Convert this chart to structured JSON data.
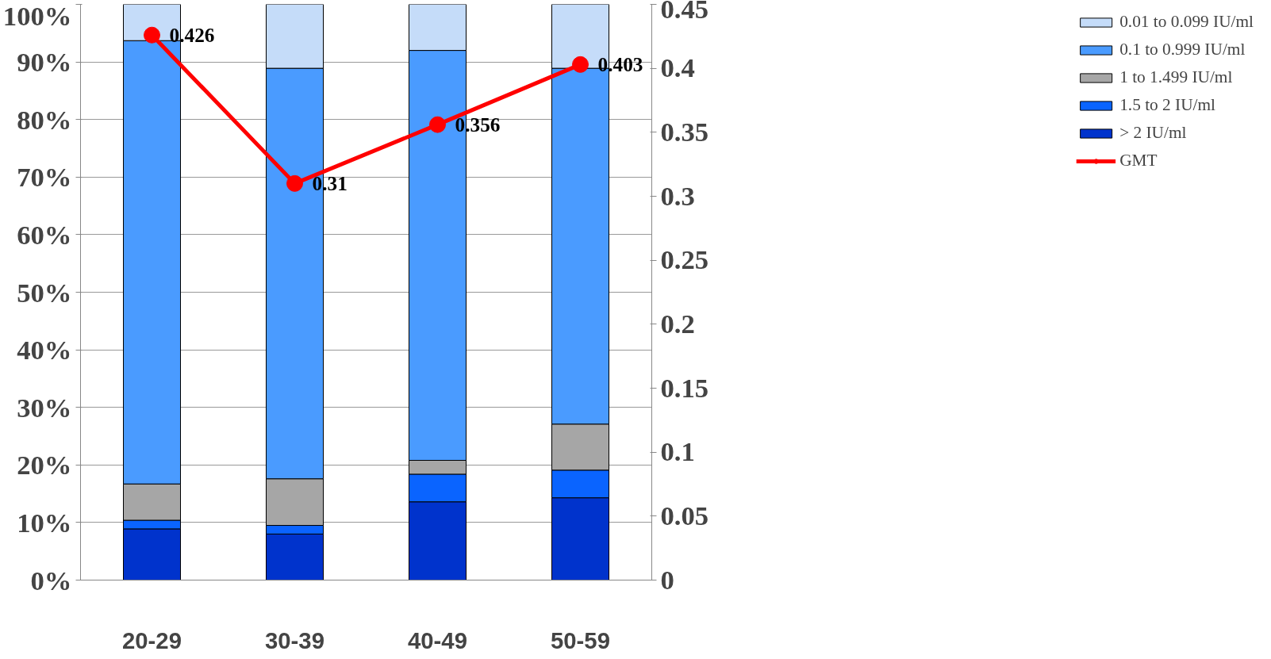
{
  "chart_data": {
    "type": "bar",
    "stacked": true,
    "categories": [
      "20-29",
      "30-39",
      "40-49",
      "50-59"
    ],
    "series": [
      {
        "name": "> 2 IU/ml",
        "color": "#0033cc",
        "values": [
          8.9,
          8.0,
          13.6,
          14.3
        ]
      },
      {
        "name": "1.5 to 2 IU/ml",
        "color": "#0a64ff",
        "values": [
          1.5,
          1.5,
          4.8,
          4.8
        ]
      },
      {
        "name": "1 to 1.499 IU/ml",
        "color": "#a6a6a6",
        "values": [
          6.3,
          8.1,
          2.4,
          8.0
        ]
      },
      {
        "name": "0.1 to 0.999 IU/ml",
        "color": "#4a9bff",
        "values": [
          77.0,
          71.3,
          71.2,
          61.8
        ]
      },
      {
        "name": "0.01 to 0.099 IU/ml",
        "color": "#c5dcf9",
        "values": [
          6.3,
          11.1,
          8.0,
          11.1
        ]
      },
      {
        "name": "GMT",
        "type": "line",
        "axis": "y2",
        "color": "#ff0000",
        "values": [
          0.426,
          0.31,
          0.356,
          0.403
        ],
        "value_labels": [
          "0.426",
          "0.31",
          "0.356",
          "0.403"
        ]
      }
    ],
    "ylim": [
      0,
      100
    ],
    "yticks": [
      {
        "value": 0,
        "label": "0%"
      },
      {
        "value": 10,
        "label": "10%"
      },
      {
        "value": 20,
        "label": "20%"
      },
      {
        "value": 30,
        "label": "30%"
      },
      {
        "value": 40,
        "label": "40%"
      },
      {
        "value": 50,
        "label": "50%"
      },
      {
        "value": 60,
        "label": "60%"
      },
      {
        "value": 70,
        "label": "70%"
      },
      {
        "value": 80,
        "label": "80%"
      },
      {
        "value": 90,
        "label": "90%"
      },
      {
        "value": 100,
        "label": "100%"
      }
    ],
    "y2lim": [
      0,
      0.45
    ],
    "y2ticks": [
      0,
      0.05,
      0.1,
      0.15,
      0.2,
      0.25,
      0.3,
      0.35,
      0.4,
      0.45
    ],
    "grid": "y",
    "legend": "right",
    "marker": "circle",
    "line_style": "solid"
  }
}
